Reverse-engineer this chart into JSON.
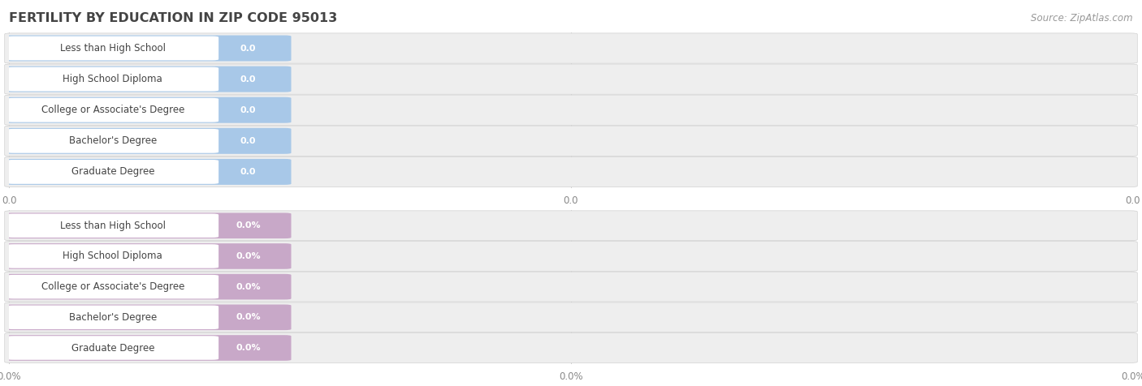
{
  "title": "FERTILITY BY EDUCATION IN ZIP CODE 95013",
  "source": "Source: ZipAtlas.com",
  "categories": [
    "Less than High School",
    "High School Diploma",
    "College or Associate's Degree",
    "Bachelor's Degree",
    "Graduate Degree"
  ],
  "top_values": [
    0.0,
    0.0,
    0.0,
    0.0,
    0.0
  ],
  "bottom_values": [
    0.0,
    0.0,
    0.0,
    0.0,
    0.0
  ],
  "top_bar_color": "#a8c8e8",
  "bottom_bar_color": "#c8a8c8",
  "bar_bg_color": "#e2e2e2",
  "label_bg_color": "#ffffff",
  "top_label_suffix": "",
  "bottom_label_suffix": "%",
  "top_tick_labels": [
    "0.0",
    "0.0",
    "0.0"
  ],
  "bottom_tick_labels": [
    "0.0%",
    "0.0%",
    "0.0%"
  ],
  "title_fontsize": 11.5,
  "source_fontsize": 8.5,
  "label_fontsize": 8.5,
  "value_fontsize": 8.0,
  "tick_fontsize": 8.5,
  "background_color": "#ffffff",
  "row_bg_color": "#eeeeee",
  "grid_color": "#cccccc",
  "text_color": "#444444",
  "value_text_color": "#ffffff",
  "tick_text_color": "#888888"
}
